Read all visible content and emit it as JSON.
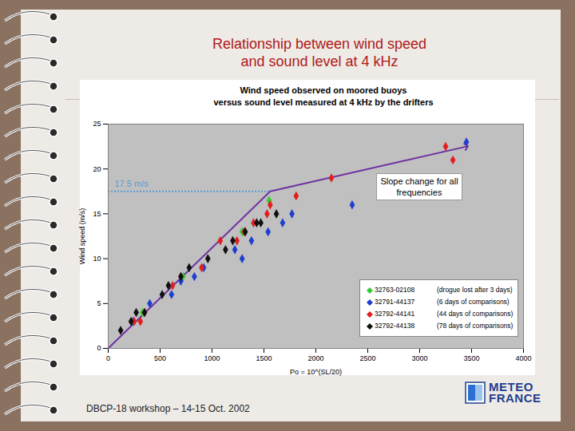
{
  "slide": {
    "title": [
      "Relationship between wind speed",
      "and sound level at 4 kHz"
    ],
    "footer": "DBCP-18 workshop – 14-15 Oct. 2002",
    "logo": [
      "METEO",
      "FRANCE"
    ]
  },
  "chart_data": {
    "type": "scatter",
    "title": [
      "Wind speed observed on moored buoys",
      "versus sound level measured at 4 kHz by the drifters"
    ],
    "x_label": "Po = 10^(SL/20)",
    "y_label": "Wind speed (m/s)",
    "xlim": [
      0,
      4000
    ],
    "xticks": [
      0,
      500,
      1000,
      1500,
      2000,
      2500,
      3000,
      3500,
      4000
    ],
    "ylim": [
      0,
      25
    ],
    "yticks": [
      0,
      5,
      10,
      15,
      20,
      25
    ],
    "grid": false,
    "legend": "bottom-right",
    "series": [
      {
        "name": "32763-02108",
        "description": "(drogue lost after 3 days)",
        "color": "#33cc33",
        "marker": "diamond",
        "x": [
          330,
          720,
          1290,
          1550
        ],
        "values": [
          4,
          8,
          13,
          16.5
        ]
      },
      {
        "name": "32791-44137",
        "description": "(6 days of comparisons)",
        "color": "#1f3fd0",
        "marker": "diamond",
        "x": [
          240,
          400,
          610,
          700,
          830,
          920,
          1220,
          1290,
          1380,
          1540,
          1680,
          1770,
          2350,
          3450
        ],
        "values": [
          3,
          5,
          6,
          7.5,
          8,
          9,
          11,
          10,
          12,
          13,
          14,
          15,
          16,
          23
        ]
      },
      {
        "name": "32792-44141",
        "description": "(44 days of comparisons)",
        "color": "#e02020",
        "marker": "diamond",
        "x": [
          250,
          310,
          350,
          620,
          700,
          900,
          1080,
          1240,
          1310,
          1400,
          1530,
          1560,
          1810,
          2150,
          3320,
          3250
        ],
        "values": [
          3,
          3,
          4,
          7,
          8,
          9,
          12,
          12,
          13,
          14,
          15,
          16,
          17,
          19,
          21,
          22.5
        ]
      },
      {
        "name": "32792-44138",
        "description": "(78 days of comparisons)",
        "color": "#111111",
        "marker": "diamond",
        "x": [
          120,
          220,
          270,
          350,
          520,
          580,
          700,
          780,
          960,
          1130,
          1200,
          1320,
          1430,
          1470,
          1620
        ],
        "values": [
          2,
          3,
          4,
          4,
          6,
          7,
          8,
          9,
          10,
          11,
          12,
          13,
          14,
          14,
          15
        ]
      },
      {
        "type": "line",
        "color": "#7030a0",
        "line_style": "solid",
        "marker": "arrow",
        "x": [
          0,
          1560,
          3450
        ],
        "values": [
          0,
          17.5,
          22.5
        ]
      }
    ],
    "reference_line": {
      "y": 17.5,
      "x": [
        0,
        1560
      ],
      "color": "#5b9bd5",
      "line_style": "dotted",
      "label": "17.5 m/s"
    },
    "annotations": [
      {
        "text": "Slope change for all frequencies",
        "x": 3000,
        "y": 18
      }
    ]
  }
}
